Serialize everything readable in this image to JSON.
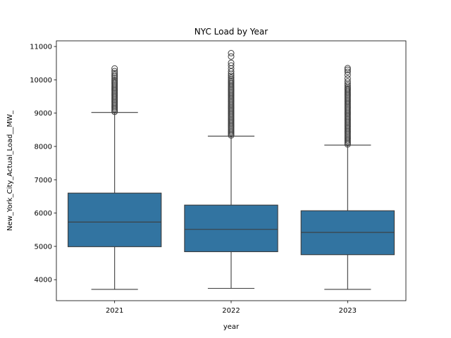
{
  "chart_data": {
    "type": "box",
    "title": "NYC Load by Year",
    "xlabel": "year",
    "ylabel": "New_York_City_Actual_Load__MW_",
    "categories": [
      "2021",
      "2022",
      "2023"
    ],
    "ylim": [
      3370,
      11170
    ],
    "yticks": [
      4000,
      5000,
      6000,
      7000,
      8000,
      9000,
      10000,
      11000
    ],
    "ytick_labels": [
      "4000",
      "5000",
      "6000",
      "7000",
      "8000",
      "9000",
      "10000",
      "11000"
    ],
    "box_color": "#3274a1",
    "line_color": "#3d3d3d",
    "boxes": [
      {
        "category": "2021",
        "whisker_low": 3710,
        "q1": 4990,
        "median": 5730,
        "q3": 6600,
        "whisker_high": 9020,
        "outliers": [
          9040,
          9080,
          9120,
          9160,
          9200,
          9240,
          9280,
          9320,
          9360,
          9400,
          9440,
          9480,
          9520,
          9560,
          9600,
          9640,
          9680,
          9720,
          9760,
          9800,
          9840,
          9880,
          9920,
          9960,
          10000,
          10050,
          10100,
          10150,
          10200,
          10260,
          10340
        ]
      },
      {
        "category": "2022",
        "whisker_low": 3740,
        "q1": 4840,
        "median": 5510,
        "q3": 6240,
        "whisker_high": 8310,
        "outliers": [
          8330,
          8370,
          8410,
          8450,
          8490,
          8530,
          8570,
          8610,
          8650,
          8690,
          8730,
          8770,
          8810,
          8850,
          8890,
          8930,
          8970,
          9010,
          9050,
          9090,
          9130,
          9170,
          9210,
          9250,
          9290,
          9330,
          9370,
          9410,
          9450,
          9490,
          9530,
          9570,
          9610,
          9650,
          9690,
          9730,
          9770,
          9810,
          9850,
          9890,
          9930,
          9970,
          10010,
          10060,
          10120,
          10180,
          10250,
          10340,
          10430,
          10510,
          10700,
          10800
        ]
      },
      {
        "category": "2023",
        "whisker_low": 3710,
        "q1": 4750,
        "median": 5420,
        "q3": 6070,
        "whisker_high": 8040,
        "outliers": [
          8060,
          8100,
          8140,
          8180,
          8220,
          8260,
          8300,
          8340,
          8380,
          8420,
          8460,
          8500,
          8540,
          8580,
          8620,
          8660,
          8700,
          8740,
          8780,
          8820,
          8860,
          8900,
          8940,
          8980,
          9020,
          9060,
          9100,
          9140,
          9180,
          9220,
          9260,
          9300,
          9340,
          9380,
          9420,
          9460,
          9500,
          9540,
          9580,
          9620,
          9660,
          9700,
          9740,
          9780,
          9830,
          9880,
          9950,
          10040,
          10150,
          10240,
          10300,
          10350
        ]
      }
    ]
  }
}
